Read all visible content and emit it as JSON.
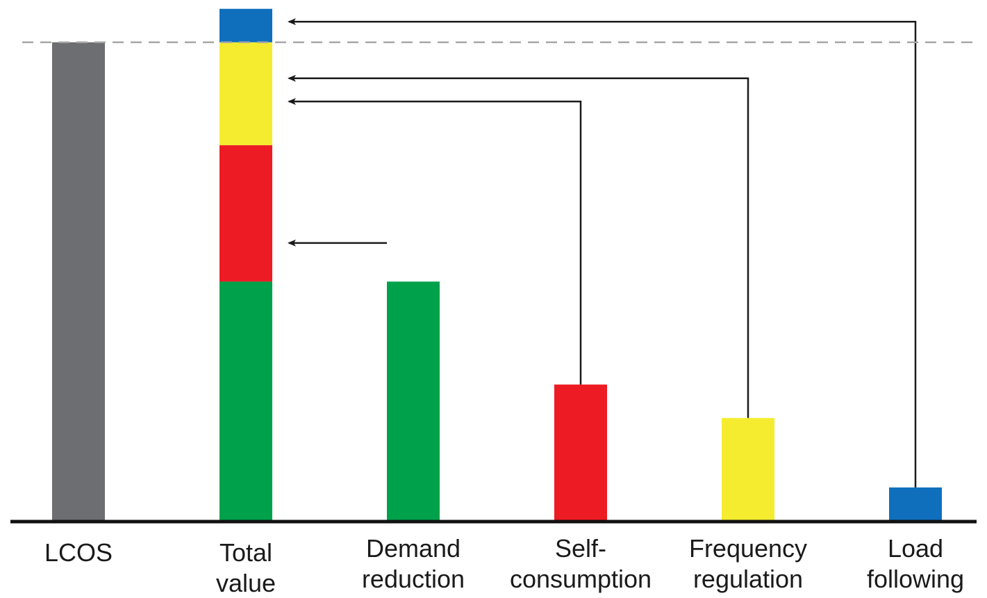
{
  "chart_data": {
    "type": "bar",
    "title": "",
    "xlabel": "",
    "ylabel": "",
    "ylim": [
      0,
      100
    ],
    "grid": false,
    "legend": "none",
    "categories": [
      [
        "LCOS"
      ],
      [
        "Total",
        "value"
      ],
      [
        "Demand",
        "reduction"
      ],
      [
        "Self-",
        "consumption"
      ],
      [
        "Frequency",
        "regulation"
      ],
      [
        "Load",
        "following"
      ]
    ],
    "reference_line": {
      "value": 93,
      "style": "dashed",
      "color": "#a6a6a6"
    },
    "lcos": {
      "value": 93,
      "color": "#6d6e71"
    },
    "components": [
      {
        "value": 46.5,
        "color": "#00a14b"
      },
      {
        "value": 26.5,
        "color": "#ed1c24"
      },
      {
        "value": 20,
        "color": "#f5ec30"
      },
      {
        "value": 6.5,
        "color": "#0f6fbd"
      }
    ],
    "arrow_targets": [
      54,
      81.5,
      86,
      97
    ]
  }
}
